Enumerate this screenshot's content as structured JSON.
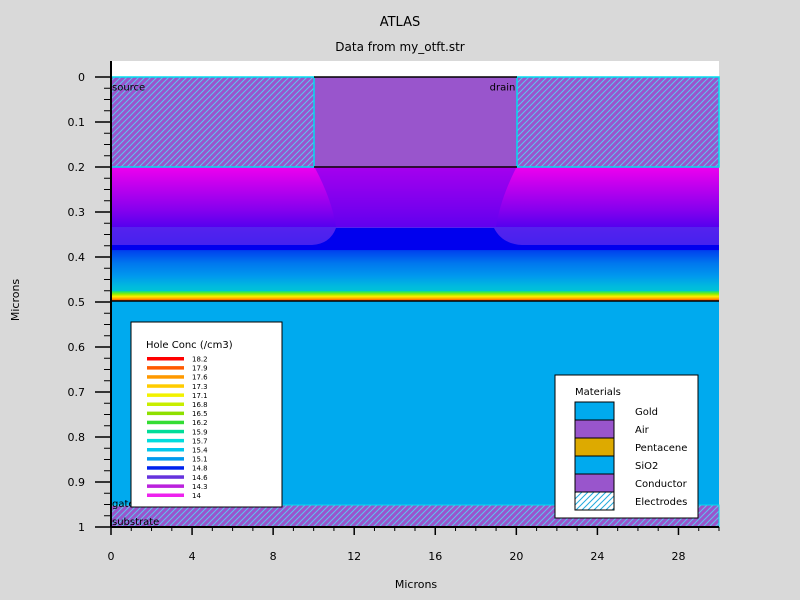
{
  "title": "ATLAS",
  "subtitle": "Data from my_otft.str",
  "chart_data": {
    "type": "heatmap",
    "xlabel": "Microns",
    "ylabel": "Microns",
    "xlim": [
      0,
      30
    ],
    "ylim": [
      0,
      1
    ],
    "x_ticks": [
      0,
      4,
      8,
      12,
      16,
      20,
      24,
      28
    ],
    "y_ticks": [
      0,
      0.1,
      0.2,
      0.3,
      0.4,
      0.5,
      0.6,
      0.7,
      0.8,
      0.9,
      1
    ],
    "regions": [
      {
        "label": "source",
        "x": [
          0,
          10
        ],
        "y": [
          0,
          0.2
        ]
      },
      {
        "label": "drain",
        "x": [
          20,
          30
        ],
        "y": [
          0,
          0.2
        ]
      },
      {
        "label": "gate",
        "x": [
          0,
          30
        ],
        "y": [
          0.95,
          1.0
        ]
      },
      {
        "label": "substrate",
        "x": [
          0,
          30
        ],
        "y": [
          0.95,
          1.0
        ]
      }
    ],
    "hole_conc_legend": {
      "title": "Hole Conc (/cm3)",
      "levels": [
        "18.2",
        "17.9",
        "17.6",
        "17.3",
        "17.1",
        "16.8",
        "16.5",
        "16.2",
        "15.9",
        "15.7",
        "15.4",
        "15.1",
        "14.8",
        "14.6",
        "14.3",
        "14"
      ],
      "colors": [
        "#ff0000",
        "#ff5a00",
        "#ff9900",
        "#ffcc00",
        "#f2f200",
        "#c8ee00",
        "#8ee000",
        "#33dd33",
        "#00dd99",
        "#00dddd",
        "#00c8ee",
        "#0099ee",
        "#0022ee",
        "#6633dd",
        "#bb22dd",
        "#ee22ee"
      ]
    },
    "materials_legend": {
      "title": "Materials",
      "items": [
        {
          "label": "Gold",
          "color": "#00aaee",
          "hatch": false
        },
        {
          "label": "Air",
          "color": "#9955cc",
          "hatch": false
        },
        {
          "label": "Pentacene",
          "color": "#ddaa00",
          "hatch": false
        },
        {
          "label": "SiO2",
          "color": "#00aaee",
          "hatch": false
        },
        {
          "label": "Conductor",
          "color": "#9955cc",
          "hatch": false
        },
        {
          "label": "Electrodes",
          "color": "#ffffff",
          "hatch": true
        }
      ]
    }
  }
}
